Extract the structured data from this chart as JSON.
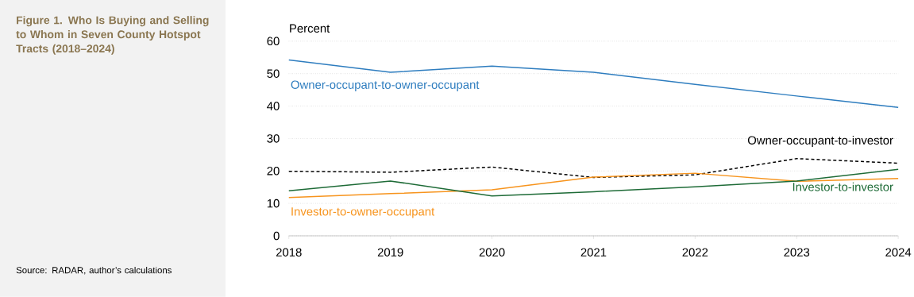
{
  "chart_data": {
    "type": "line",
    "title": "Figure 1. Who Is Buying and Selling to Whom in Seven County Hotspot Tracts (2018–2024)",
    "ylabel": "Percent",
    "annotations": [
      "Source: RADAR, author’s calculations"
    ],
    "x": [
      2018,
      2019,
      2020,
      2021,
      2022,
      2023,
      2024
    ],
    "series": [
      {
        "name": "Owner-occupant-to-owner-occupant",
        "color": "#2e7dbf",
        "values": [
          54.2,
          50.4,
          52.3,
          50.4,
          46.7,
          43.1,
          39.6
        ]
      },
      {
        "name": "Owner-occupant-to-investor",
        "color": "#000000",
        "line_style": "dashed",
        "values": [
          19.9,
          19.6,
          21.2,
          18.0,
          18.8,
          23.8,
          22.4
        ]
      },
      {
        "name": "Investor-to-owner-occupant",
        "color": "#f7941d",
        "values": [
          11.8,
          13.0,
          14.2,
          18.1,
          19.3,
          16.8,
          17.7
        ]
      },
      {
        "name": "Investor-to-investor",
        "color": "#1e6b37",
        "values": [
          13.9,
          16.9,
          12.3,
          13.6,
          15.1,
          16.9,
          20.5
        ]
      }
    ],
    "xlim": [
      2018,
      2024
    ],
    "xticks": [
      2018,
      2019,
      2020,
      2021,
      2022,
      2023,
      2024
    ],
    "ylim": [
      0,
      60
    ],
    "yticks": [
      0,
      10,
      20,
      30,
      40,
      50,
      60
    ],
    "grid": "y",
    "legend": false,
    "line_style": "solid",
    "marker": "none"
  }
}
